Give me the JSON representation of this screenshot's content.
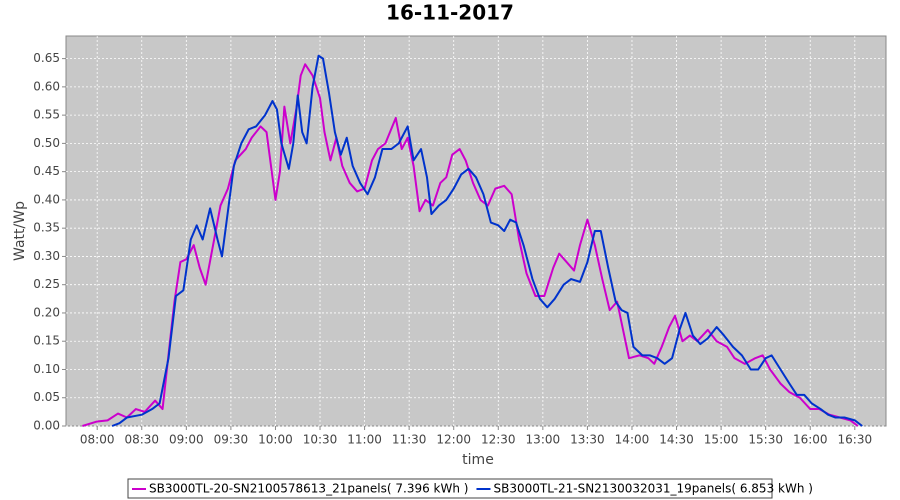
{
  "chart_data": {
    "type": "line",
    "title": "16-11-2017",
    "x_label": "time",
    "y_label": "Watt/Wp",
    "xlim": [
      "07:39",
      "16:51"
    ],
    "ylim": [
      0,
      0.69
    ],
    "xticks": [
      "08:00",
      "08:30",
      "09:00",
      "09:30",
      "10:00",
      "10:30",
      "11:00",
      "11:30",
      "12:00",
      "12:30",
      "13:00",
      "13:30",
      "14:00",
      "14:30",
      "15:00",
      "15:30",
      "16:00",
      "16:30"
    ],
    "yticks": [
      {
        "value": 0,
        "label": "0.00"
      },
      {
        "value": 0.05,
        "label": "0.05"
      },
      {
        "value": 0.1,
        "label": "0.10"
      },
      {
        "value": 0.15,
        "label": "0.15"
      },
      {
        "value": 0.2,
        "label": "0.20"
      },
      {
        "value": 0.25,
        "label": "0.25"
      },
      {
        "value": 0.3,
        "label": "0.30"
      },
      {
        "value": 0.35,
        "label": "0.35"
      },
      {
        "value": 0.4,
        "label": "0.40"
      },
      {
        "value": 0.45,
        "label": "0.45"
      },
      {
        "value": 0.5,
        "label": "0.50"
      },
      {
        "value": 0.55,
        "label": "0.55"
      },
      {
        "value": 0.6,
        "label": "0.60"
      },
      {
        "value": 0.65,
        "label": "0.65"
      }
    ],
    "grid": true,
    "legend": "bottom",
    "series": [
      {
        "name": "SB3000TL-20-SN2100578613_21panels( 7.396 kWh )",
        "color": "#cc00cc",
        "x": [
          "07:50",
          "08:00",
          "08:07",
          "08:14",
          "08:20",
          "08:26",
          "08:32",
          "08:39",
          "08:44",
          "08:49",
          "08:52",
          "08:56",
          "09:00",
          "09:05",
          "09:09",
          "09:13",
          "09:18",
          "09:23",
          "09:28",
          "09:33",
          "09:40",
          "09:44",
          "09:50",
          "09:54",
          "10:00",
          "10:03",
          "10:06",
          "10:10",
          "10:14",
          "10:17",
          "10:20",
          "10:25",
          "10:30",
          "10:33",
          "10:37",
          "10:41",
          "10:45",
          "10:50",
          "10:55",
          "11:00",
          "11:05",
          "11:09",
          "11:14",
          "11:21",
          "11:25",
          "11:29",
          "11:33",
          "11:37",
          "11:41",
          "11:46",
          "11:51",
          "11:55",
          "11:59",
          "12:04",
          "12:08",
          "12:13",
          "12:18",
          "12:23",
          "12:28",
          "12:34",
          "12:39",
          "12:44",
          "12:49",
          "12:55",
          "13:01",
          "13:07",
          "13:11",
          "13:16",
          "13:21",
          "13:25",
          "13:30",
          "13:35",
          "13:40",
          "13:45",
          "13:50",
          "13:54",
          "13:58",
          "14:05",
          "14:11",
          "14:15",
          "14:20",
          "14:25",
          "14:29",
          "14:34",
          "14:39",
          "14:44",
          "14:51",
          "14:57",
          "15:04",
          "15:09",
          "15:16",
          "15:23",
          "15:28",
          "15:33",
          "15:40",
          "15:46",
          "15:53",
          "16:00",
          "16:06",
          "16:13",
          "16:20",
          "16:27",
          "16:32"
        ],
        "values": [
          0,
          0.008,
          0.01,
          0.022,
          0.015,
          0.03,
          0.025,
          0.045,
          0.03,
          0.15,
          0.22,
          0.29,
          0.295,
          0.32,
          0.28,
          0.25,
          0.32,
          0.39,
          0.42,
          0.47,
          0.49,
          0.51,
          0.53,
          0.52,
          0.4,
          0.45,
          0.565,
          0.5,
          0.56,
          0.62,
          0.64,
          0.62,
          0.58,
          0.52,
          0.47,
          0.51,
          0.46,
          0.43,
          0.415,
          0.42,
          0.47,
          0.49,
          0.5,
          0.545,
          0.49,
          0.51,
          0.46,
          0.38,
          0.4,
          0.39,
          0.43,
          0.44,
          0.48,
          0.49,
          0.47,
          0.43,
          0.4,
          0.39,
          0.42,
          0.425,
          0.41,
          0.33,
          0.27,
          0.23,
          0.23,
          0.28,
          0.305,
          0.29,
          0.275,
          0.32,
          0.365,
          0.32,
          0.26,
          0.205,
          0.22,
          0.17,
          0.12,
          0.125,
          0.12,
          0.11,
          0.14,
          0.175,
          0.195,
          0.15,
          0.16,
          0.15,
          0.17,
          0.15,
          0.14,
          0.12,
          0.11,
          0.12,
          0.125,
          0.1,
          0.075,
          0.06,
          0.05,
          0.03,
          0.03,
          0.02,
          0.015,
          0.01,
          0
        ]
      },
      {
        "name": "SB3000TL-21-SN2130032031_19panels( 6.853 kWh )",
        "color": "#0033cc",
        "x": [
          "08:10",
          "08:15",
          "08:20",
          "08:30",
          "08:37",
          "08:42",
          "08:48",
          "08:53",
          "08:58",
          "09:03",
          "09:07",
          "09:11",
          "09:16",
          "09:21",
          "09:24",
          "09:28",
          "09:32",
          "09:37",
          "09:42",
          "09:47",
          "09:53",
          "09:58",
          "10:01",
          "10:04",
          "10:09",
          "10:12",
          "10:15",
          "10:18",
          "10:21",
          "10:25",
          "10:29",
          "10:32",
          "10:36",
          "10:40",
          "10:44",
          "10:48",
          "10:52",
          "10:57",
          "11:02",
          "11:07",
          "11:12",
          "11:18",
          "11:23",
          "11:29",
          "11:33",
          "11:38",
          "11:42",
          "11:45",
          "11:50",
          "11:55",
          "12:00",
          "12:05",
          "12:10",
          "12:15",
          "12:20",
          "12:25",
          "12:30",
          "12:34",
          "12:38",
          "12:42",
          "12:47",
          "12:53",
          "12:58",
          "13:03",
          "13:08",
          "13:14",
          "13:19",
          "13:25",
          "13:30",
          "13:35",
          "13:39",
          "13:44",
          "13:49",
          "13:53",
          "13:57",
          "14:01",
          "14:07",
          "14:12",
          "14:17",
          "14:22",
          "14:27",
          "14:32",
          "14:36",
          "14:41",
          "14:46",
          "14:51",
          "14:57",
          "15:02",
          "15:08",
          "15:14",
          "15:20",
          "15:25",
          "15:30",
          "15:34",
          "15:40",
          "15:46",
          "15:51",
          "15:56",
          "16:01",
          "16:07",
          "16:12",
          "16:17",
          "16:23",
          "16:30",
          "16:35"
        ],
        "values": [
          0,
          0.005,
          0.015,
          0.02,
          0.03,
          0.04,
          0.12,
          0.23,
          0.24,
          0.33,
          0.355,
          0.33,
          0.385,
          0.33,
          0.3,
          0.38,
          0.46,
          0.5,
          0.525,
          0.53,
          0.55,
          0.575,
          0.56,
          0.5,
          0.455,
          0.5,
          0.585,
          0.52,
          0.5,
          0.6,
          0.655,
          0.65,
          0.59,
          0.52,
          0.48,
          0.51,
          0.46,
          0.43,
          0.41,
          0.44,
          0.49,
          0.49,
          0.5,
          0.53,
          0.47,
          0.49,
          0.44,
          0.375,
          0.39,
          0.4,
          0.42,
          0.445,
          0.455,
          0.44,
          0.41,
          0.36,
          0.355,
          0.345,
          0.365,
          0.36,
          0.32,
          0.26,
          0.225,
          0.21,
          0.225,
          0.25,
          0.26,
          0.255,
          0.29,
          0.345,
          0.345,
          0.28,
          0.22,
          0.205,
          0.2,
          0.14,
          0.125,
          0.125,
          0.12,
          0.11,
          0.12,
          0.17,
          0.2,
          0.16,
          0.145,
          0.155,
          0.175,
          0.16,
          0.14,
          0.125,
          0.1,
          0.1,
          0.12,
          0.125,
          0.1,
          0.075,
          0.055,
          0.055,
          0.04,
          0.03,
          0.02,
          0.015,
          0.015,
          0.01,
          0
        ]
      }
    ]
  }
}
